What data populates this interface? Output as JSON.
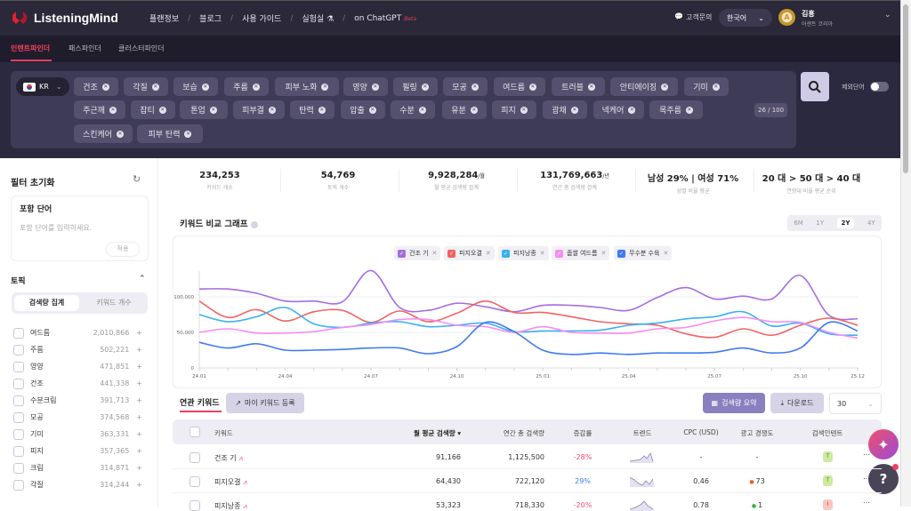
{
  "header": {
    "logo": "ListeningMind",
    "nav": [
      "플랜정보",
      "블로그",
      "사용 가이드",
      "실험실",
      "on ChatGPT"
    ],
    "beta": "Beta",
    "support": "고객문의",
    "language": "한국어",
    "user_initial": "A",
    "user_name": "김흥",
    "user_org": "어센트 코리아"
  },
  "tabs": [
    "인텐트파인더",
    "패스파인더",
    "클러스터파인더"
  ],
  "search": {
    "country": "KR",
    "chips_row1": [
      "건조",
      "각질",
      "보습",
      "주름",
      "피부 노화",
      "영양",
      "필링",
      "모공",
      "여드름",
      "트러블",
      "안티에이징",
      "기미"
    ],
    "chips_row2": [
      "주근깨",
      "잡티",
      "톤업",
      "피부결",
      "탄력",
      "압출",
      "수분",
      "유분",
      "피지",
      "광채",
      "넥케어",
      "목주름"
    ],
    "chips_row3": [
      "스킨케어",
      "피부 탄력"
    ],
    "count": "26 / 100",
    "exclude_label": "제외단어"
  },
  "sidebar": {
    "reset": "필터 초기화",
    "include_title": "포함 단어",
    "include_placeholder": "포함 단어를 입력하세요.",
    "apply": "적용",
    "topic_title": "토픽",
    "seg_on": "검색량 집계",
    "seg_off": "키워드 개수",
    "topics": [
      {
        "n": "여드름",
        "v": "2,010,866"
      },
      {
        "n": "주름",
        "v": "502,221"
      },
      {
        "n": "영양",
        "v": "471,851"
      },
      {
        "n": "건조",
        "v": "441,338"
      },
      {
        "n": "수분크림",
        "v": "391,713"
      },
      {
        "n": "모공",
        "v": "374,568"
      },
      {
        "n": "기미",
        "v": "363,331"
      },
      {
        "n": "피지",
        "v": "357,365"
      },
      {
        "n": "크림",
        "v": "314,871"
      },
      {
        "n": "각질",
        "v": "314,244"
      }
    ]
  },
  "stats": [
    {
      "v": "234,253",
      "u": "",
      "l": "키워드 개수"
    },
    {
      "v": "54,769",
      "u": "",
      "l": "토픽 개수"
    },
    {
      "v": "9,928,284",
      "u": "/월",
      "l": "월 평균 검색량 합계"
    },
    {
      "v": "131,769,663",
      "u": "/년",
      "l": "연간 총 검색량 합계"
    },
    {
      "v": "남성 29% | 여성 71%",
      "u": "",
      "l": "성별 비율 평균"
    },
    {
      "v": "20 대 > 50 대 > 40 대",
      "u": "",
      "l": "연령대 비율 평균 순위"
    }
  ],
  "chart_title": "키워드 비교 그래프",
  "ranges": [
    "6M",
    "1Y",
    "2Y",
    "4Y"
  ],
  "chart_data": {
    "type": "line",
    "title": "키워드 비교 그래프",
    "xlabel": "",
    "ylabel": "",
    "ylim": [
      0,
      140000
    ],
    "yticks": [
      0,
      50000,
      100000
    ],
    "ytick_labels": [
      "0",
      "50,000",
      "100,000"
    ],
    "x": [
      "24.01",
      "24.02",
      "24.03",
      "24.04",
      "24.05",
      "24.06",
      "24.07",
      "24.08",
      "24.09",
      "24.10",
      "24.11",
      "24.12",
      "25.01",
      "25.02",
      "25.03",
      "25.04",
      "25.05",
      "25.06",
      "25.07",
      "25.08",
      "25.09",
      "25.10",
      "25.11",
      "25.12"
    ],
    "xtick_labels": [
      "24.01",
      "24.04",
      "24.07",
      "24.10",
      "25.01",
      "25.04",
      "25.07",
      "25.10",
      "25.12"
    ],
    "legend": "top-center",
    "grid": true,
    "series": [
      {
        "name": "건조 기",
        "color": "#a56de2",
        "values": [
          111000,
          111000,
          105000,
          94000,
          94000,
          93000,
          137000,
          85000,
          81000,
          91000,
          86000,
          79000,
          88000,
          88000,
          85000,
          81000,
          99000,
          113000,
          97000,
          101000,
          97000,
          130000,
          74000,
          69000
        ]
      },
      {
        "name": "피지오결",
        "color": "#f26363",
        "values": [
          94000,
          71000,
          82000,
          66000,
          79000,
          81000,
          64000,
          80000,
          65000,
          77000,
          94000,
          78000,
          78000,
          72000,
          65000,
          62000,
          60000,
          48000,
          43000,
          55000,
          46000,
          60000,
          70000,
          60000
        ]
      },
      {
        "name": "피지낭종",
        "color": "#3ab0f0",
        "values": [
          75000,
          65000,
          72000,
          85000,
          62000,
          57000,
          63000,
          65000,
          58000,
          60000,
          63000,
          51000,
          52000,
          52000,
          53000,
          60000,
          63000,
          69000,
          72000,
          79000,
          59000,
          63000,
          48000,
          46000
        ]
      },
      {
        "name": "좁쌀 여드름",
        "color": "#f78ef0",
        "values": [
          50000,
          55000,
          49000,
          49000,
          51000,
          57000,
          61000,
          68000,
          68000,
          60000,
          58000,
          50000,
          58000,
          50000,
          49000,
          49000,
          55000,
          57000,
          66000,
          71000,
          65000,
          64000,
          50000,
          42000
        ]
      },
      {
        "name": "무수분 수육",
        "color": "#3f7af0",
        "values": [
          36000,
          28000,
          34000,
          25000,
          25000,
          26000,
          28000,
          28000,
          20000,
          30000,
          64000,
          51000,
          25000,
          19000,
          21000,
          19000,
          21000,
          21000,
          22000,
          28000,
          21000,
          28000,
          64000,
          52000
        ]
      }
    ]
  },
  "related": {
    "title": "연관 키워드",
    "my_kw": "마이 키워드 등록",
    "summary": "검색량 요약",
    "download": "다운로드",
    "page_size": "30",
    "columns": [
      "키워드",
      "월 평균 검색량 ▾",
      "연간 총 검색량",
      "증감률",
      "트렌드",
      "CPC (USD)",
      "광고 경쟁도",
      "검색인텐트"
    ],
    "rows": [
      {
        "kw": "건조 기",
        "monthly": "91,166",
        "yearly": "1,125,500",
        "change": "-28%",
        "cpc": "-",
        "comp": "-",
        "intent": "T"
      },
      {
        "kw": "피지오결",
        "monthly": "64,430",
        "yearly": "722,120",
        "change": "29%",
        "cpc": "0.46",
        "comp": "73",
        "intent": "T"
      },
      {
        "kw": "피지낭종",
        "monthly": "53,323",
        "yearly": "718,330",
        "change": "-20%",
        "cpc": "0.78",
        "comp": "1",
        "intent": "I"
      }
    ]
  }
}
